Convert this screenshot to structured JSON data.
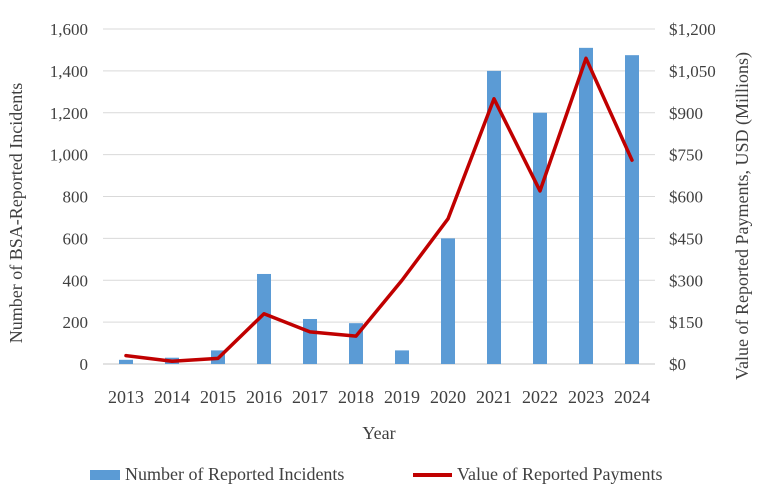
{
  "chart_data": {
    "type": "combo-bar-line",
    "title": "",
    "categories": [
      "2013",
      "2014",
      "2015",
      "2016",
      "2017",
      "2018",
      "2019",
      "2020",
      "2021",
      "2022",
      "2023",
      "2024"
    ],
    "x_axis": {
      "title": "Year"
    },
    "left_axis": {
      "title": "Number of BSA-Reported Incidents",
      "min": 0,
      "max": 1600,
      "step": 200,
      "tick_labels": [
        "0",
        "200",
        "400",
        "600",
        "800",
        "1,000",
        "1,200",
        "1,400",
        "1,600"
      ]
    },
    "right_axis": {
      "title": "Value of Reported Payments, USD (Millions)",
      "min": 0,
      "max": 1200,
      "step": 150,
      "tick_labels": [
        "$0",
        "$150",
        "$300",
        "$450",
        "$600",
        "$750",
        "$900",
        "$1,050",
        "$1,200"
      ]
    },
    "series": [
      {
        "name": "Number of Reported Incidents",
        "type": "bar",
        "y_axis": "left",
        "color": "#5B9BD5",
        "values": [
          20,
          30,
          65,
          430,
          215,
          195,
          65,
          600,
          1400,
          1200,
          1510,
          1475
        ]
      },
      {
        "name": "Value of Reported Payments",
        "type": "line",
        "y_axis": "right",
        "color": "#C00000",
        "values": [
          30,
          10,
          20,
          180,
          115,
          100,
          300,
          520,
          950,
          620,
          1095,
          730
        ]
      }
    ],
    "grid": {
      "horizontal": true,
      "vertical": false,
      "color": "#D9D9D9"
    },
    "axis_line_color": "#C6C6C6",
    "text_color": "#404040",
    "legend_position": "bottom"
  }
}
